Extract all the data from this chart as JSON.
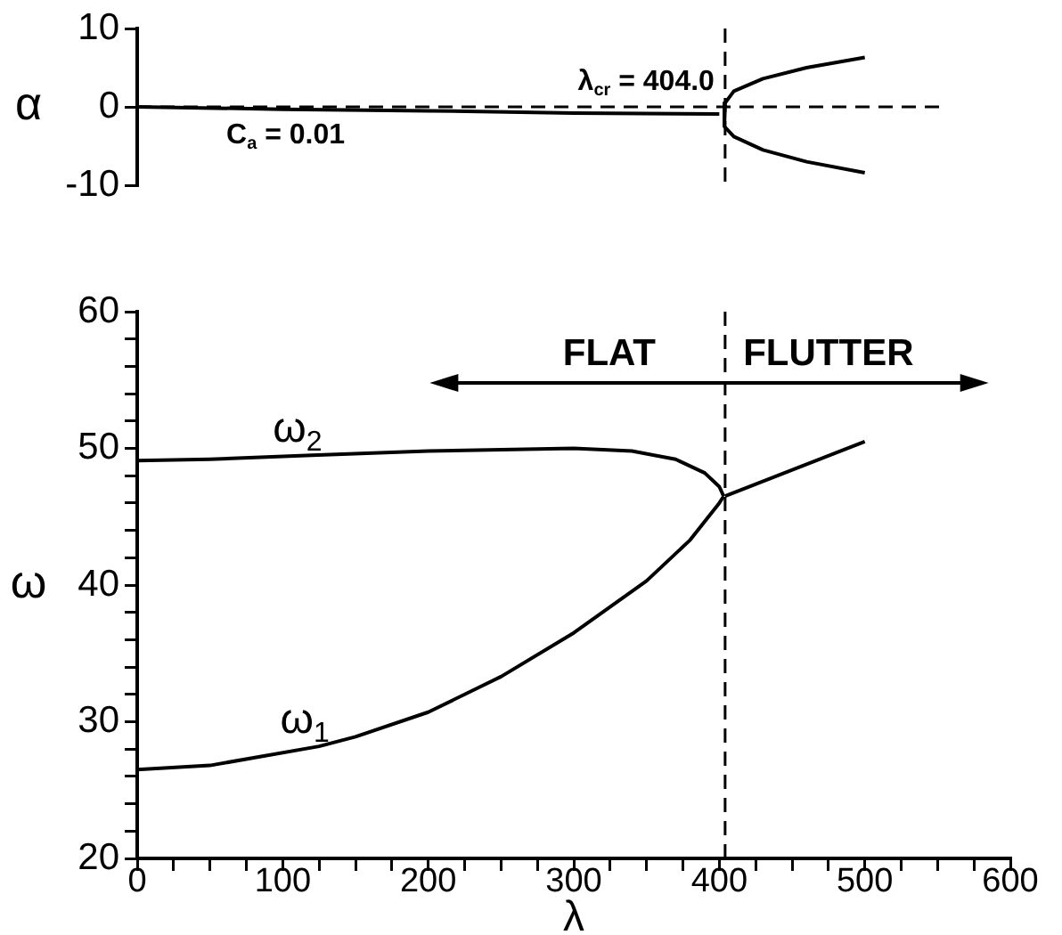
{
  "chart_data": [
    {
      "type": "line",
      "ylabel": "α",
      "xlim": [
        0,
        600
      ],
      "ylim": [
        -10,
        10
      ],
      "yticks": [
        -10,
        0,
        10
      ],
      "tick_labels": "y",
      "grid": false,
      "legend": false,
      "marker": "none",
      "series": [
        {
          "color": "#000000",
          "x": [
            0,
            100,
            200,
            300,
            400
          ],
          "values": [
            0,
            -0.3,
            -0.5,
            -0.8,
            -0.9
          ]
        },
        {
          "color": "#000000",
          "x": [
            500,
            460,
            430,
            410,
            404,
            403,
            404,
            410,
            430,
            460,
            500
          ],
          "values": [
            6.3,
            5.0,
            3.6,
            2.0,
            0.5,
            -1.0,
            -2.5,
            -3.8,
            -5.5,
            -7.0,
            -8.4
          ]
        }
      ],
      "ref_lines": [
        {
          "axis": "y",
          "value": 0,
          "line_style": "dashed",
          "color": "#000000"
        },
        {
          "axis": "x",
          "value": 404,
          "line_style": "dashed",
          "color": "#000000"
        }
      ],
      "annotations": [
        "λ$_{cr}$ = 404.0",
        "C$_{a}$ = 0.01"
      ]
    },
    {
      "type": "line",
      "xlabel": "λ",
      "ylabel": "ω",
      "xlim": [
        0,
        600
      ],
      "ylim": [
        20,
        60
      ],
      "xticks": [
        0,
        {
          "value": 25,
          "label": null
        },
        {
          "value": 50,
          "label": null
        },
        {
          "value": 75,
          "label": null
        },
        100,
        {
          "value": 125,
          "label": null
        },
        {
          "value": 150,
          "label": null
        },
        {
          "value": 175,
          "label": null
        },
        200,
        {
          "value": 225,
          "label": null
        },
        {
          "value": 250,
          "label": null
        },
        {
          "value": 275,
          "label": null
        },
        300,
        {
          "value": 325,
          "label": null
        },
        {
          "value": 350,
          "label": null
        },
        {
          "value": 375,
          "label": null
        },
        400,
        {
          "value": 425,
          "label": null
        },
        {
          "value": 450,
          "label": null
        },
        {
          "value": 475,
          "label": null
        },
        500,
        {
          "value": 525,
          "label": null
        },
        {
          "value": 550,
          "label": null
        },
        {
          "value": 575,
          "label": null
        },
        600
      ],
      "yticks": [
        20,
        {
          "value": 22,
          "label": null
        },
        {
          "value": 24,
          "label": null
        },
        {
          "value": 26,
          "label": null
        },
        {
          "value": 28,
          "label": null
        },
        30,
        {
          "value": 32,
          "label": null
        },
        {
          "value": 34,
          "label": null
        },
        {
          "value": 36,
          "label": null
        },
        {
          "value": 38,
          "label": null
        },
        40,
        {
          "value": 42,
          "label": null
        },
        {
          "value": 44,
          "label": null
        },
        {
          "value": 46,
          "label": null
        },
        {
          "value": 48,
          "label": null
        },
        50,
        {
          "value": 52,
          "label": null
        },
        {
          "value": 54,
          "label": null
        },
        {
          "value": 56,
          "label": null
        },
        {
          "value": 58,
          "label": null
        },
        60
      ],
      "grid": false,
      "legend": false,
      "marker": "none",
      "series": [
        {
          "name": "ω$_{2}$",
          "color": "#000000",
          "x": [
            0,
            50,
            120,
            200,
            300,
            340,
            370,
            390,
            400,
            403
          ],
          "values": [
            49.1,
            49.2,
            49.5,
            49.8,
            50.0,
            49.8,
            49.2,
            48.2,
            47.2,
            46.5
          ]
        },
        {
          "name": "ω$_{1}$",
          "color": "#000000",
          "x": [
            0,
            50,
            125,
            150,
            200,
            250,
            300,
            350,
            380,
            400,
            403
          ],
          "values": [
            26.5,
            26.8,
            28.2,
            28.9,
            30.7,
            33.3,
            36.5,
            40.3,
            43.3,
            46.0,
            46.5
          ]
        },
        {
          "color": "#000000",
          "x": [
            404,
            500
          ],
          "values": [
            46.5,
            50.5
          ]
        }
      ],
      "ref_lines": [
        {
          "axis": "x",
          "value": 404,
          "line_style": "dashed",
          "color": "#000000"
        }
      ],
      "annotations": [
        "FLAT",
        "FLUTTER"
      ]
    }
  ]
}
